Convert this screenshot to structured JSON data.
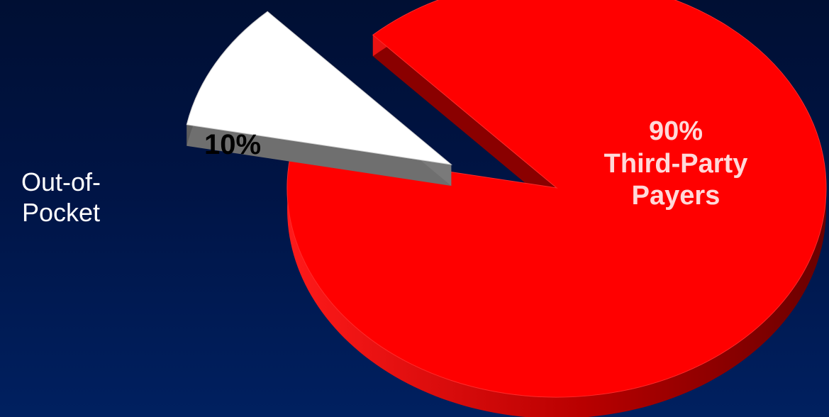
{
  "chart_data": {
    "type": "pie",
    "title": "",
    "slices": [
      {
        "label_lines": [
          "Out-of-",
          "Pocket"
        ],
        "value": 10,
        "value_label": "10%",
        "color": "#ffffff",
        "side_color": "#808080",
        "exploded": true
      },
      {
        "label_lines": [
          "Third-Party",
          "Payers"
        ],
        "value": 90,
        "value_label": "90%",
        "color": "#ff0000",
        "side_color": "#a80000",
        "exploded": false
      }
    ]
  }
}
